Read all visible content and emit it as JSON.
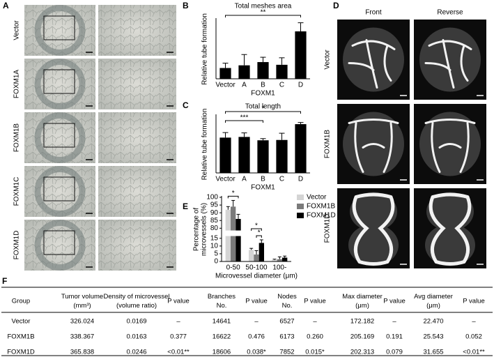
{
  "panels": {
    "A": {
      "label": "A",
      "rows": [
        "Vector",
        "FOXM1A",
        "FOXM1B",
        "FOXM1C",
        "FOXM1D"
      ]
    },
    "D": {
      "label": "D",
      "columns": [
        "Front",
        "Reverse"
      ],
      "rows": [
        "Vector",
        "FOXM1B",
        "FOXM1D"
      ]
    },
    "F": {
      "label": "F"
    }
  },
  "chart_data": [
    {
      "label": "B",
      "type": "bar",
      "title": "Total meshes area",
      "ylabel": "Relative tube formation",
      "xlabel": "FOXM1",
      "categories": [
        "Vector",
        "A",
        "B",
        "C",
        "D"
      ],
      "values": [
        1.0,
        1.25,
        1.55,
        1.3,
        4.4
      ],
      "errors": [
        0.45,
        1.0,
        0.45,
        0.65,
        0.8
      ],
      "color": "#000000",
      "ylim": [
        0,
        5.5
      ],
      "significance": [
        {
          "text": "**",
          "between": [
            "Vector",
            "D"
          ]
        }
      ]
    },
    {
      "label": "C",
      "type": "bar",
      "title": "Total length",
      "ylabel": "Relative tube formation",
      "xlabel": "FOXM1",
      "categories": [
        "Vector",
        "A",
        "B",
        "C",
        "D"
      ],
      "values": [
        1.05,
        1.07,
        0.97,
        0.98,
        1.45
      ],
      "errors": [
        0.15,
        0.12,
        0.05,
        0.2,
        0.05
      ],
      "color": "#000000",
      "ylim": [
        0,
        1.7
      ],
      "significance": [
        {
          "text": "*",
          "between": [
            "Vector",
            "D"
          ]
        },
        {
          "text": "***",
          "between": [
            "Vector",
            "B"
          ]
        }
      ]
    },
    {
      "label": "E",
      "type": "grouped_bar",
      "ylabel": [
        "Percentage of",
        "microvessels (%)"
      ],
      "xlabel": "Microvessel diameter (μm)",
      "categories": [
        "0-50",
        "50-100",
        "100-"
      ],
      "series": [
        {
          "name": "Vector",
          "color": "#d4d4d4",
          "values": [
            92,
            7.5,
            1
          ],
          "errors": [
            2,
            1,
            0.5
          ]
        },
        {
          "name": "FOXM1B",
          "color": "#7a7a7a",
          "values": [
            94,
            4.5,
            1.5
          ],
          "errors": [
            4,
            2.5,
            1.5
          ]
        },
        {
          "name": "FOXM1D",
          "color": "#000000",
          "values": [
            86,
            12,
            2.5
          ],
          "errors": [
            3,
            2,
            1
          ]
        }
      ],
      "ylim": [
        0,
        100
      ],
      "ybreak": [
        16,
        79
      ],
      "yticks": [
        0,
        5,
        10,
        15,
        80,
        85,
        90,
        95,
        100
      ],
      "significance": [
        {
          "text": "*",
          "category": "0-50",
          "between": [
            "Vector",
            "FOXM1D"
          ]
        },
        {
          "text": "*",
          "category": "50-100",
          "between": [
            "Vector",
            "FOXM1D"
          ]
        },
        {
          "text": "*",
          "category": "50-100",
          "between": [
            "FOXM1B",
            "FOXM1D"
          ]
        }
      ],
      "legend": "top-right"
    }
  ],
  "table": {
    "headers": [
      [
        "Group"
      ],
      [
        "Tumor volume",
        "(mm³)"
      ],
      [
        "Density of microvessel",
        "(volume ratio)"
      ],
      [
        "P value"
      ],
      [
        "Branches",
        "No."
      ],
      [
        "P value"
      ],
      [
        "Nodes",
        "No."
      ],
      [
        "P value"
      ],
      [
        "Max diameter",
        "(μm)"
      ],
      [
        "P value"
      ],
      [
        "Avg diameter",
        "(μm)"
      ],
      [
        "P value"
      ]
    ],
    "rows": [
      [
        "Vector",
        "326.024",
        "0.0169",
        "–",
        "14641",
        "–",
        "6527",
        "–",
        "172.182",
        "–",
        "22.470",
        "–"
      ],
      [
        "FOXM1B",
        "338.367",
        "0.0163",
        "0.377",
        "16622",
        "0.476",
        "6173",
        "0.260",
        "205.169",
        "0.191",
        "25.543",
        "0.052"
      ],
      [
        "FOXM1D",
        "365.838",
        "0.0246",
        "<0.01**",
        "18606",
        "0.038*",
        "7852",
        "0.015*",
        "202.313",
        "0.079",
        "31.655",
        "<0.01**"
      ]
    ]
  }
}
